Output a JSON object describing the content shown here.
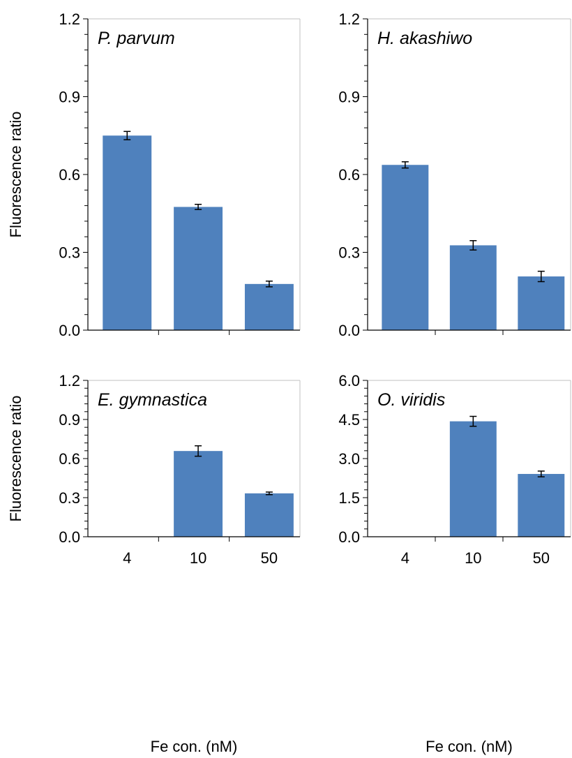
{
  "colors": {
    "bar": "#4f81bd",
    "axis": "#000000",
    "frame": "#c0c0c0",
    "errorbar": "#000000"
  },
  "chart_data": [
    {
      "type": "bar",
      "title": "P. parvum",
      "categories": [
        "4",
        "10",
        "50"
      ],
      "values": [
        0.75,
        0.475,
        0.178
      ],
      "errors": [
        0.016,
        0.01,
        0.011
      ],
      "ylim": [
        0,
        1.2
      ],
      "yticks": [
        "0.0",
        "0.3",
        "0.6",
        "0.9",
        "1.2"
      ],
      "ylabel": "Fluorescence ratio",
      "xlabel": "",
      "grid": false
    },
    {
      "type": "bar",
      "title": "H. akashiwo",
      "categories": [
        "4",
        "10",
        "50"
      ],
      "values": [
        0.637,
        0.327,
        0.207
      ],
      "errors": [
        0.012,
        0.018,
        0.02
      ],
      "ylim": [
        0,
        1.2
      ],
      "yticks": [
        "0.0",
        "0.3",
        "0.6",
        "0.9",
        "1.2"
      ],
      "ylabel": "",
      "xlabel": "",
      "grid": false
    },
    {
      "type": "bar",
      "title": "E. gymnastica",
      "categories": [
        "4",
        "10",
        "50"
      ],
      "values": [
        null,
        0.658,
        0.333
      ],
      "errors": [
        null,
        0.04,
        0.01
      ],
      "ylim": [
        0,
        1.2
      ],
      "yticks": [
        "0.0",
        "0.3",
        "0.6",
        "0.9",
        "1.2"
      ],
      "ylabel": "Fluorescence ratio",
      "xlabel": "Fe con. (nM)",
      "grid": false
    },
    {
      "type": "bar",
      "title": "O. viridis",
      "categories": [
        "4",
        "10",
        "50"
      ],
      "values": [
        null,
        4.43,
        2.41
      ],
      "errors": [
        null,
        0.19,
        0.11
      ],
      "ylim": [
        0,
        6.0
      ],
      "yticks": [
        "0.0",
        "1.5",
        "3.0",
        "4.5",
        "6.0"
      ],
      "ylabel": "",
      "xlabel": "Fe con. (nM)",
      "grid": false
    }
  ]
}
